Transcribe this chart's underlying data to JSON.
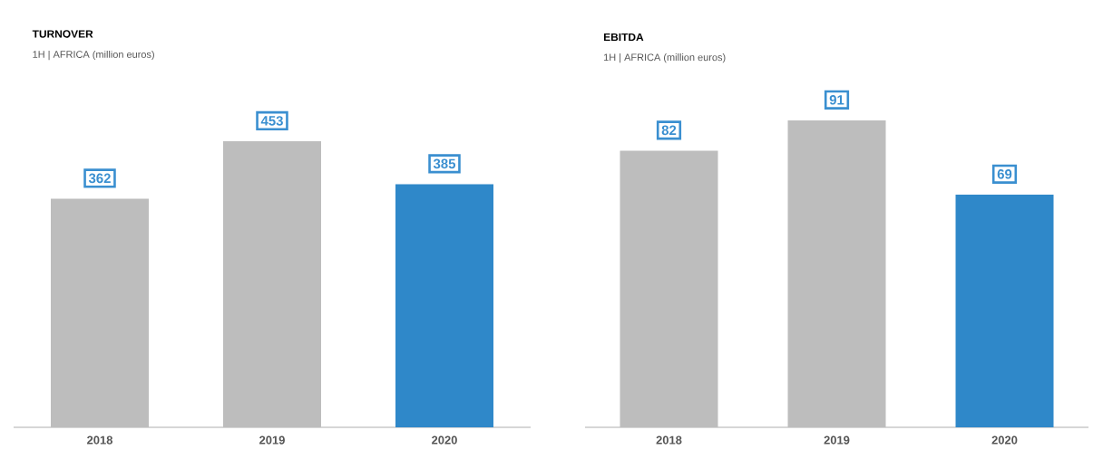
{
  "chart_data": [
    {
      "type": "bar",
      "title": "TURNOVER",
      "subtitle": "1H | AFRICA (million euros)",
      "categories": [
        "2018",
        "2019",
        "2020"
      ],
      "values": [
        362,
        453,
        385
      ],
      "colors": [
        "#bdbdbd",
        "#bdbdbd",
        "#2f88c9"
      ],
      "data_labels": true
    },
    {
      "type": "bar",
      "title": "EBITDA",
      "subtitle": "1H | AFRICA (million euros)",
      "categories": [
        "2018",
        "2019",
        "2020"
      ],
      "values": [
        82,
        91,
        69
      ],
      "colors": [
        "#bdbdbd",
        "#bdbdbd",
        "#2f88c9"
      ],
      "data_labels": true
    }
  ]
}
